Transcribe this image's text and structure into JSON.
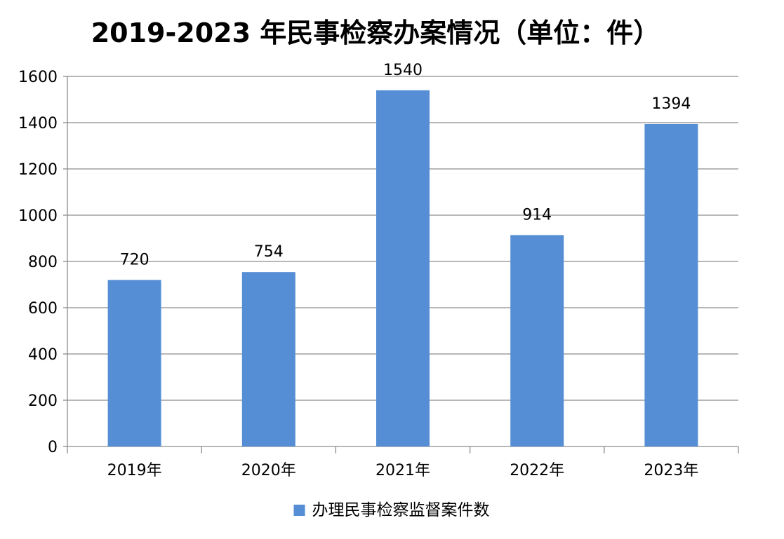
{
  "chart_data": {
    "type": "bar",
    "title": "2019-2023 年民事检察办案情况（单位：件）",
    "categories": [
      "2019年",
      "2020年",
      "2021年",
      "2022年",
      "2023年"
    ],
    "series": [
      {
        "name": "办理民事检察监督案件数",
        "values": [
          720,
          754,
          1540,
          914,
          1394
        ],
        "color": "#558ED5"
      }
    ],
    "ylim": [
      0,
      1600
    ],
    "yticks": [
      0,
      200,
      400,
      600,
      800,
      1000,
      1200,
      1400,
      1600
    ],
    "data_labels": [
      "720",
      "754",
      "1540",
      "914",
      "1394"
    ],
    "grid": true,
    "legend_position": "bottom",
    "xlabel": "",
    "ylabel": ""
  }
}
